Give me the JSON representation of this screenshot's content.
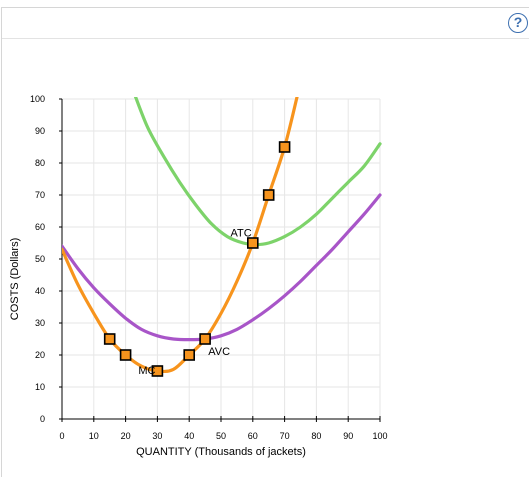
{
  "help": {
    "icon": "question-circle-icon",
    "symbol": "?"
  },
  "colors": {
    "mc": "#f7941d",
    "atc": "#7dd36a",
    "avc": "#a855c8",
    "marker_fill": "#f7941d",
    "marker_stroke": "#000000",
    "grid": "#e6e6e6"
  },
  "chart_data": {
    "type": "line",
    "xlabel": "QUANTITY (Thousands of jackets)",
    "ylabel": "COSTS (Dollars)",
    "xlim": [
      0,
      100
    ],
    "ylim": [
      0,
      100
    ],
    "xticks": [
      0,
      10,
      20,
      30,
      40,
      50,
      60,
      70,
      80,
      90,
      100
    ],
    "yticks": [
      0,
      10,
      20,
      30,
      40,
      50,
      60,
      70,
      80,
      90,
      100
    ],
    "grid": true,
    "series": [
      {
        "name": "MC",
        "color": "#f7941d",
        "points": [
          [
            0,
            53
          ],
          [
            5,
            42
          ],
          [
            10,
            33
          ],
          [
            15,
            25
          ],
          [
            20,
            20
          ],
          [
            25,
            16.5
          ],
          [
            30,
            15
          ],
          [
            35,
            15.5
          ],
          [
            40,
            20
          ],
          [
            45,
            25
          ],
          [
            50,
            33
          ],
          [
            55,
            43
          ],
          [
            60,
            55
          ],
          [
            65,
            70
          ],
          [
            70,
            85
          ],
          [
            74,
            101
          ]
        ],
        "markers": [
          [
            15,
            25
          ],
          [
            20,
            20
          ],
          [
            30,
            15
          ],
          [
            40,
            20
          ],
          [
            45,
            25
          ],
          [
            60,
            55
          ],
          [
            65,
            70
          ],
          [
            70,
            85
          ]
        ],
        "label": {
          "text": "MC",
          "x": 24,
          "y": 14
        }
      },
      {
        "name": "ATC",
        "color": "#7dd36a",
        "points": [
          [
            23,
            101
          ],
          [
            27,
            91
          ],
          [
            32,
            82
          ],
          [
            37,
            74
          ],
          [
            42,
            67
          ],
          [
            47,
            61
          ],
          [
            52,
            57
          ],
          [
            57,
            55
          ],
          [
            61,
            54.5
          ],
          [
            65,
            55
          ],
          [
            70,
            57
          ],
          [
            75,
            60
          ],
          [
            80,
            64
          ],
          [
            85,
            69
          ],
          [
            90,
            74
          ],
          [
            95,
            79
          ],
          [
            100,
            86
          ]
        ],
        "label": {
          "text": "ATC",
          "x": 53,
          "y": 57
        }
      },
      {
        "name": "AVC",
        "color": "#a855c8",
        "points": [
          [
            0,
            54
          ],
          [
            5,
            47
          ],
          [
            10,
            41
          ],
          [
            15,
            36
          ],
          [
            20,
            31.5
          ],
          [
            25,
            28
          ],
          [
            30,
            26
          ],
          [
            35,
            25
          ],
          [
            40,
            24.8
          ],
          [
            45,
            25
          ],
          [
            50,
            26
          ],
          [
            55,
            28
          ],
          [
            60,
            31
          ],
          [
            65,
            34.5
          ],
          [
            70,
            38.5
          ],
          [
            75,
            43
          ],
          [
            80,
            48
          ],
          [
            85,
            53
          ],
          [
            90,
            58.5
          ],
          [
            95,
            64
          ],
          [
            100,
            70
          ]
        ],
        "label": {
          "text": "AVC",
          "x": 46,
          "y": 20
        }
      }
    ]
  }
}
